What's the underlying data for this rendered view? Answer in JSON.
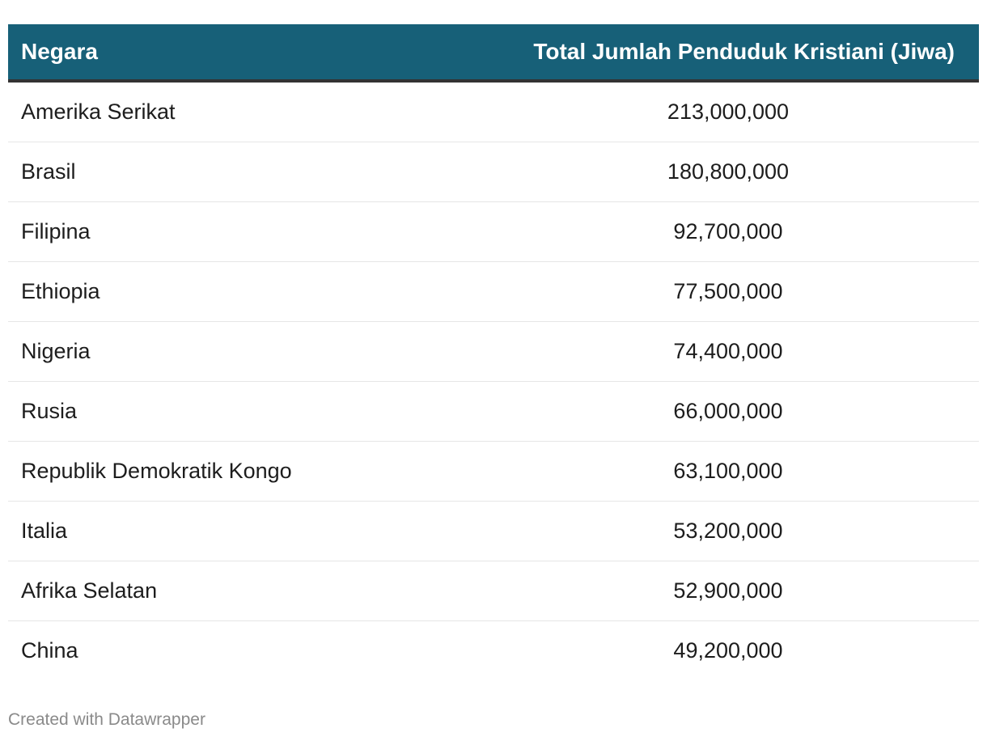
{
  "chart_data": {
    "type": "table",
    "columns": [
      "Negara",
      "Total Jumlah Penduduk Kristiani (Jiwa)"
    ],
    "rows": [
      {
        "country": "Amerika Serikat",
        "value": 213000000,
        "display": "213,000,000"
      },
      {
        "country": "Brasil",
        "value": 180800000,
        "display": "180,800,000"
      },
      {
        "country": "Filipina",
        "value": 92700000,
        "display": "92,700,000"
      },
      {
        "country": "Ethiopia",
        "value": 77500000,
        "display": "77,500,000"
      },
      {
        "country": "Nigeria",
        "value": 74400000,
        "display": "74,400,000"
      },
      {
        "country": "Rusia",
        "value": 66000000,
        "display": "66,000,000"
      },
      {
        "country": "Republik Demokratik Kongo",
        "value": 63100000,
        "display": "63,100,000"
      },
      {
        "country": "Italia",
        "value": 53200000,
        "display": "53,200,000"
      },
      {
        "country": "Afrika Selatan",
        "value": 52900000,
        "display": "52,900,000"
      },
      {
        "country": "China",
        "value": 49200000,
        "display": "49,200,000"
      }
    ]
  },
  "footer": {
    "credit": "Created with Datawrapper"
  },
  "colors": {
    "header_background": "#176078",
    "header_text": "#ffffff",
    "header_border": "#333333",
    "row_divider": "#e6e6e6",
    "footer_text": "#8a8a8a"
  }
}
